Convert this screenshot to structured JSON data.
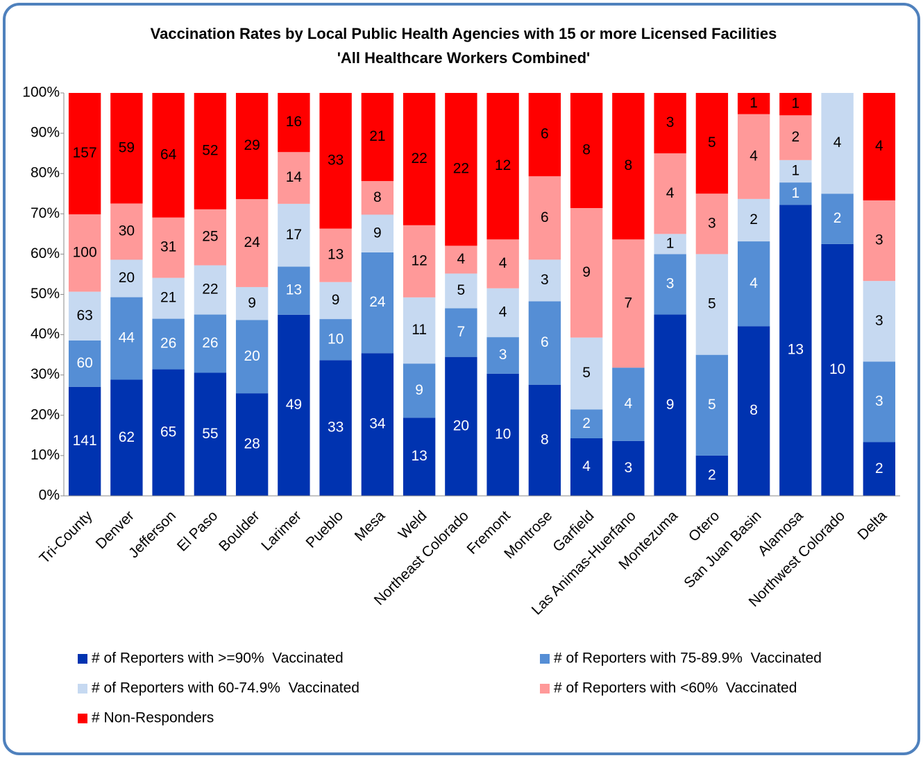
{
  "chart_data": {
    "type": "stacked_percent_bar",
    "title": "Vaccination Rates by Local Public Health Agencies with 15 or more Licensed Facilities",
    "subtitle": "'All Healthcare Workers Combined'",
    "categories": [
      "Tri-County",
      "Denver",
      "Jefferson",
      "El Paso",
      "Boulder",
      "Larimer",
      "Pueblo",
      "Mesa",
      "Weld",
      "Northeast Colorado",
      "Fremont",
      "Montrose",
      "Garfield",
      "Las Animas-Huerfano",
      "Montezuma",
      "Otero",
      "San Juan Basin",
      "Alamosa",
      "Northwest Colorado",
      "Delta"
    ],
    "series": [
      {
        "name": "# of Reporters with >=90%  Vaccinated",
        "color": "#0033b0",
        "values": [
          141,
          62,
          65,
          55,
          28,
          49,
          33,
          34,
          13,
          20,
          10,
          8,
          4,
          3,
          9,
          2,
          8,
          13,
          10,
          2
        ]
      },
      {
        "name": "# of Reporters with 75-89.9%  Vaccinated",
        "color": "#558ed5",
        "values": [
          60,
          44,
          26,
          26,
          20,
          13,
          10,
          24,
          9,
          7,
          3,
          6,
          2,
          4,
          3,
          5,
          4,
          1,
          2,
          3
        ]
      },
      {
        "name": "# of Reporters with 60-74.9%  Vaccinated",
        "color": "#c6d9f1",
        "values": [
          63,
          20,
          21,
          22,
          9,
          17,
          9,
          9,
          11,
          5,
          4,
          3,
          5,
          null,
          1,
          5,
          2,
          1,
          4,
          3
        ]
      },
      {
        "name": "# of Reporters with <60%  Vaccinated",
        "color": "#ff9999",
        "values": [
          100,
          30,
          31,
          25,
          24,
          14,
          13,
          8,
          12,
          4,
          4,
          6,
          9,
          7,
          4,
          3,
          4,
          2,
          null,
          3
        ]
      },
      {
        "name": "# Non-Responders",
        "color": "#ff0000",
        "values": [
          157,
          59,
          64,
          52,
          29,
          16,
          33,
          21,
          22,
          22,
          12,
          6,
          8,
          8,
          3,
          5,
          1,
          1,
          null,
          4
        ]
      }
    ],
    "ylim": [
      0,
      100
    ],
    "yticks": [
      {
        "value": 0,
        "label": "0%"
      },
      {
        "value": 10,
        "label": "10%"
      },
      {
        "value": 20,
        "label": "20%"
      },
      {
        "value": 30,
        "label": "30%"
      },
      {
        "value": 40,
        "label": "40%"
      },
      {
        "value": 50,
        "label": "50%"
      },
      {
        "value": 60,
        "label": "60%"
      },
      {
        "value": 70,
        "label": "70%"
      },
      {
        "value": 80,
        "label": "80%"
      },
      {
        "value": 90,
        "label": "90%"
      },
      {
        "value": 100,
        "label": "100%"
      }
    ],
    "legend": "bottom"
  }
}
